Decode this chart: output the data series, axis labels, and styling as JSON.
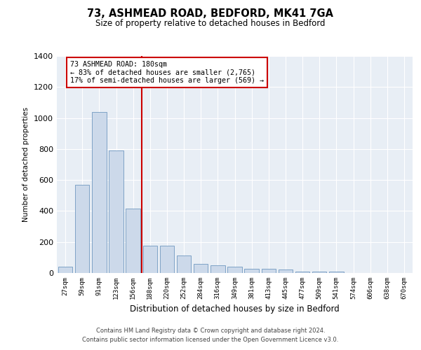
{
  "title1": "73, ASHMEAD ROAD, BEDFORD, MK41 7GA",
  "title2": "Size of property relative to detached houses in Bedford",
  "xlabel": "Distribution of detached houses by size in Bedford",
  "ylabel": "Number of detached properties",
  "bar_color": "#ccd9ea",
  "bar_edge_color": "#7098c0",
  "categories": [
    "27sqm",
    "59sqm",
    "91sqm",
    "123sqm",
    "156sqm",
    "188sqm",
    "220sqm",
    "252sqm",
    "284sqm",
    "316sqm",
    "349sqm",
    "381sqm",
    "413sqm",
    "445sqm",
    "477sqm",
    "509sqm",
    "541sqm",
    "574sqm",
    "606sqm",
    "638sqm",
    "670sqm"
  ],
  "values": [
    40,
    570,
    1040,
    790,
    415,
    175,
    175,
    115,
    58,
    50,
    40,
    27,
    25,
    23,
    10,
    8,
    8,
    0,
    0,
    0,
    0
  ],
  "vline_color": "#cc0000",
  "vline_pos": 4.5,
  "annotation_text": "73 ASHMEAD ROAD: 180sqm\n← 83% of detached houses are smaller (2,765)\n17% of semi-detached houses are larger (569) →",
  "annotation_box_color": "#ffffff",
  "annotation_box_edge_color": "#cc0000",
  "ylim": [
    0,
    1400
  ],
  "yticks": [
    0,
    200,
    400,
    600,
    800,
    1000,
    1200,
    1400
  ],
  "footer1": "Contains HM Land Registry data © Crown copyright and database right 2024.",
  "footer2": "Contains public sector information licensed under the Open Government Licence v3.0.",
  "grid_color": "#ffffff",
  "plot_bg_color": "#e8eef5"
}
